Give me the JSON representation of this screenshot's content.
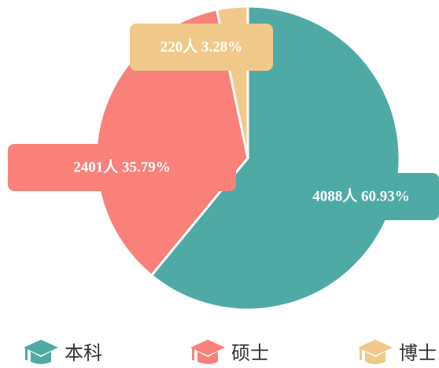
{
  "chart_data": {
    "type": "pie",
    "categories": [
      "本科",
      "硕士",
      "博士"
    ],
    "values": [
      4088,
      2401,
      220
    ],
    "value_labels": [
      "4088人  60.93%",
      "2401人  35.79%",
      "220人  3.28%"
    ],
    "colors": [
      "#4faaa6",
      "#fa807a",
      "#f0c98a"
    ],
    "legend": "bottom"
  }
}
